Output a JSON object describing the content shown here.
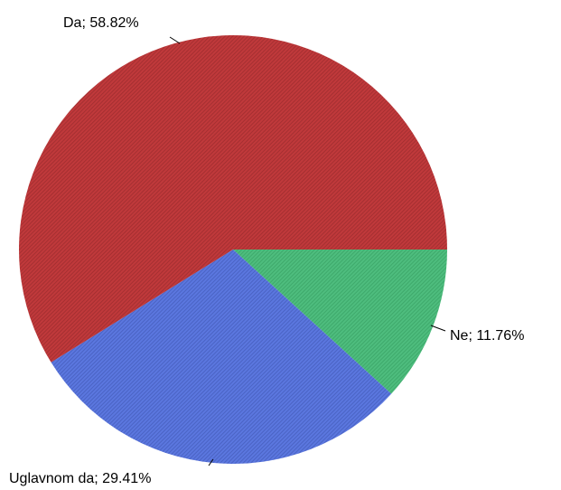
{
  "chart_data": {
    "type": "pie",
    "title": "",
    "slices": [
      {
        "label": "Da; 58.82%",
        "category": "Da",
        "value": 58.82,
        "color": "#c0393b",
        "texture_color": "#a52f31"
      },
      {
        "label": "Uglavnom da; 29.41%",
        "category": "Uglavnom da",
        "value": 29.41,
        "color": "#5b77df",
        "texture_color": "#4a63c4"
      },
      {
        "label": "Ne; 11.76%",
        "category": "Ne",
        "value": 11.76,
        "color": "#4ebd7e",
        "texture_color": "#3ea96b"
      }
    ],
    "legend": "none"
  }
}
